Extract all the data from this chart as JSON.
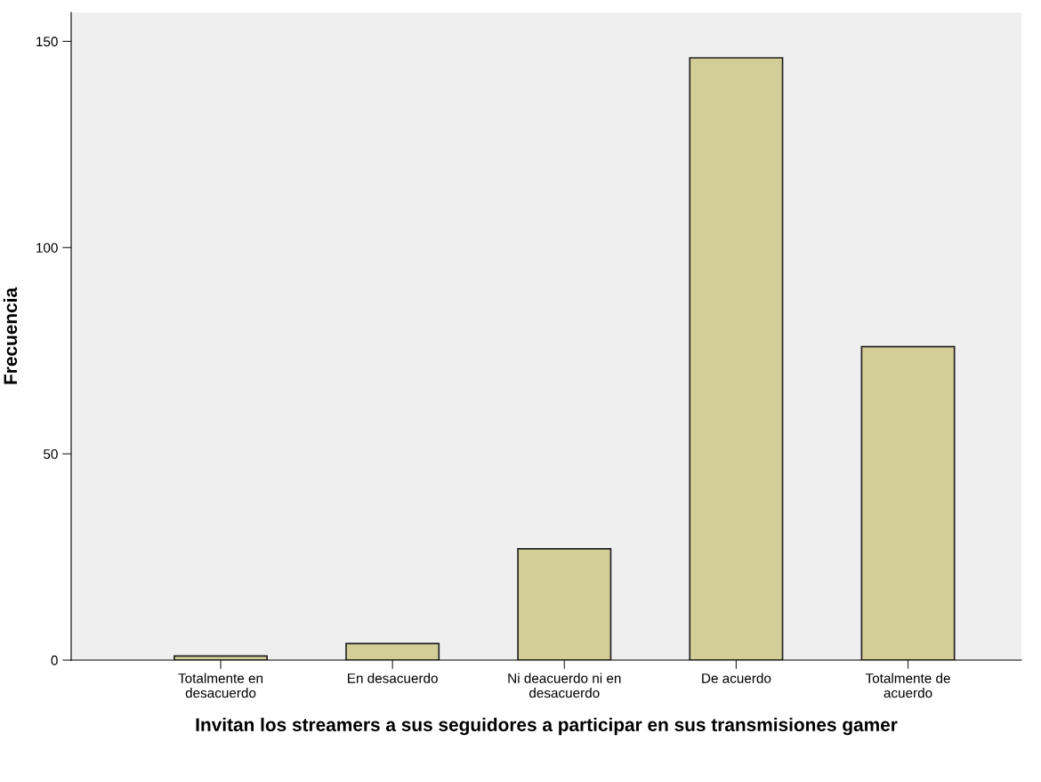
{
  "chart_data": {
    "type": "bar",
    "xlabel": "Invitan los streamers a sus seguidores a participar en sus transmisiones gamer",
    "ylabel": "Frecuencia",
    "categories": [
      "Totalmente en\ndesacuerdo",
      "En desacuerdo",
      "Ni deacuerdo ni en\ndesacuerdo",
      "De acuerdo",
      "Totalmente de\nacuerdo"
    ],
    "values": [
      1,
      4,
      27,
      146,
      76
    ],
    "color": "#d3ce97",
    "ylim": [
      0,
      157
    ],
    "yticks": [
      0,
      50,
      100,
      150
    ],
    "grid": false
  }
}
